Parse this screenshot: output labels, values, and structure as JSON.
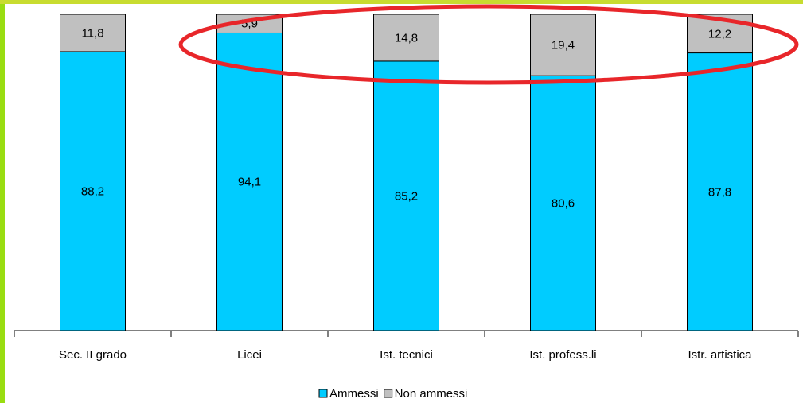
{
  "chart_data": {
    "type": "bar",
    "stacked": true,
    "categories": [
      "Sec. II grado",
      "Licei",
      "Ist. tecnici",
      "Ist. profess.li",
      "Istr. artistica"
    ],
    "series": [
      {
        "name": "Ammessi",
        "values": [
          88.2,
          94.1,
          85.2,
          80.6,
          87.8
        ],
        "labels": [
          "88,2",
          "94,1",
          "85,2",
          "80,6",
          "87,8"
        ]
      },
      {
        "name": "Non ammessi",
        "values": [
          11.8,
          5.9,
          14.8,
          19.4,
          12.2
        ],
        "labels": [
          "11,8",
          "5,9",
          "14,8",
          "19,4",
          "12,2"
        ]
      }
    ],
    "ylim": [
      0,
      100
    ],
    "grid": false,
    "legend_position": "bottom",
    "annotation": "red ellipse highlighting the top segments",
    "title": "",
    "xlabel": "",
    "ylabel": ""
  },
  "colors": {
    "ammessi": "#00CCFF",
    "non_ammessi": "#C0C0C0",
    "outline": "#000000",
    "highlight_ellipse": "#E8262A",
    "frame_left": "#99DD11",
    "frame_top": "#C8DC30"
  }
}
